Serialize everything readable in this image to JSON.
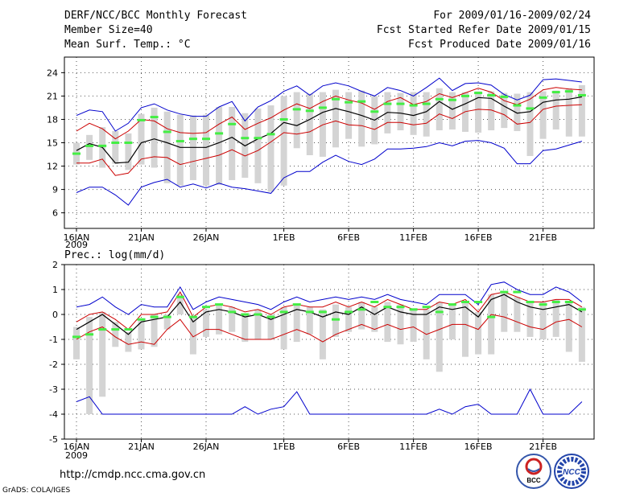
{
  "header": {
    "title": "DERF/NCC/BCC Monthly Forecast",
    "member_size": "Member Size=40",
    "variable": "Mean Surf. Temp.: °C",
    "forecast_period": "For 2009/01/16-2009/02/24",
    "started_date": "Fcst Started Refer Date 2009/01/15",
    "produced_date": "Fcst Produced Date 2009/01/16"
  },
  "footer": {
    "url": "http://cmdp.ncc.cma.gov.cn",
    "credit": "GrADS: COLA/IGES",
    "logo_left": "BCC",
    "logo_right": "NCC"
  },
  "colors": {
    "box": "#d4d4d4",
    "median": "#000000",
    "quartile": "#cc0000",
    "extreme": "#0000cc",
    "marker": "#44ee44"
  },
  "chart_data": [
    {
      "type": "box-plume",
      "title": "Mean Surf. Temp.: °C",
      "ylabel": "",
      "ylim": [
        4,
        26
      ],
      "yticks": [
        6,
        9,
        12,
        15,
        18,
        21,
        24
      ],
      "xlabels": [
        "16JAN",
        "21JAN",
        "26JAN",
        "1FEB",
        "6FEB",
        "11FEB",
        "16FEB",
        "21FEB"
      ],
      "xlabel_days": [
        1,
        6,
        11,
        17,
        22,
        27,
        32,
        37
      ],
      "x_year": "2009",
      "x": [
        1,
        2,
        3,
        4,
        5,
        6,
        7,
        8,
        9,
        10,
        11,
        12,
        13,
        14,
        15,
        16,
        17,
        18,
        19,
        20,
        21,
        22,
        23,
        24,
        25,
        26,
        27,
        28,
        29,
        30,
        31,
        32,
        33,
        34,
        35,
        36,
        37,
        38,
        39,
        40
      ],
      "series": [
        {
          "name": "max",
          "values": [
            18.5,
            19.2,
            19.0,
            16.5,
            17.5,
            19.5,
            20.0,
            19.2,
            18.7,
            18.4,
            18.4,
            19.6,
            20.3,
            17.8,
            19.6,
            20.4,
            21.6,
            22.3,
            21.1,
            22.3,
            22.7,
            22.3,
            21.6,
            21.0,
            22.1,
            21.7,
            21.0,
            22.1,
            23.3,
            21.7,
            22.6,
            22.7,
            22.4,
            21.2,
            20.5,
            21.1,
            23.1,
            23.2,
            23.0,
            22.8
          ]
        },
        {
          "name": "upper",
          "values": [
            16.5,
            17.5,
            16.8,
            15.5,
            16.5,
            18.0,
            17.8,
            16.8,
            16.3,
            16.2,
            16.3,
            17.4,
            18.3,
            16.7,
            17.5,
            18.2,
            19.2,
            20.0,
            19.4,
            20.3,
            21.0,
            20.5,
            20.1,
            19.3,
            20.3,
            20.8,
            19.9,
            20.3,
            21.3,
            20.8,
            21.4,
            22.0,
            21.5,
            20.4,
            19.9,
            20.6,
            21.8,
            22.1,
            21.9,
            21.8
          ]
        },
        {
          "name": "median",
          "values": [
            14.0,
            14.9,
            14.4,
            12.4,
            12.5,
            15.0,
            15.5,
            15.0,
            14.4,
            14.4,
            14.4,
            15.0,
            15.7,
            14.6,
            15.5,
            16.2,
            17.6,
            17.2,
            18.0,
            18.9,
            19.4,
            19.0,
            18.5,
            17.9,
            18.9,
            18.8,
            18.5,
            19.0,
            20.3,
            19.3,
            20.0,
            20.8,
            20.7,
            19.7,
            18.8,
            19.0,
            20.2,
            20.5,
            20.6,
            20.9
          ]
        },
        {
          "name": "lower",
          "values": [
            12.4,
            12.4,
            12.9,
            10.8,
            11.1,
            12.9,
            13.2,
            13.1,
            12.2,
            12.6,
            13.0,
            13.4,
            14.1,
            13.3,
            14.0,
            15.1,
            16.3,
            16.1,
            16.4,
            17.3,
            17.8,
            17.3,
            17.2,
            16.7,
            17.6,
            17.6,
            17.3,
            17.5,
            18.7,
            18.1,
            19.0,
            19.3,
            19.2,
            18.6,
            17.4,
            17.6,
            19.3,
            19.7,
            19.8,
            19.9
          ]
        },
        {
          "name": "min",
          "values": [
            8.6,
            9.3,
            9.3,
            8.3,
            7.0,
            9.3,
            9.9,
            10.3,
            9.3,
            9.7,
            9.2,
            9.8,
            9.3,
            9.1,
            8.8,
            8.5,
            10.5,
            11.3,
            11.3,
            12.5,
            13.4,
            12.6,
            12.2,
            12.9,
            14.2,
            14.2,
            14.3,
            14.5,
            15.0,
            14.6,
            15.2,
            15.3,
            15.0,
            14.3,
            12.3,
            12.3,
            14.0,
            14.2,
            14.7,
            15.2
          ]
        },
        {
          "name": "box_high",
          "values": [
            15.0,
            16.0,
            17.0,
            16.5,
            16.2,
            18.7,
            19.5,
            19.0,
            18.6,
            18.5,
            18.6,
            19.6,
            19.6,
            18.8,
            19.4,
            19.8,
            21.0,
            21.5,
            21.3,
            21.5,
            21.8,
            21.5,
            21.7,
            21.0,
            21.5,
            21.4,
            21.5,
            21.5,
            22.0,
            21.5,
            21.5,
            21.6,
            21.6,
            21.4,
            21.3,
            21.5,
            21.6,
            21.7,
            22.0,
            22.4
          ]
        },
        {
          "name": "box_low",
          "values": [
            12.2,
            12.8,
            11.8,
            12.3,
            11.5,
            12.2,
            11.8,
            9.8,
            9.5,
            10.2,
            9.5,
            9.6,
            10.2,
            10.5,
            9.8,
            8.7,
            9.5,
            14.3,
            13.4,
            13.2,
            14.4,
            15.5,
            14.5,
            14.8,
            16.2,
            16.6,
            16.0,
            15.8,
            16.6,
            16.7,
            16.4,
            16.3,
            16.6,
            16.9,
            16.5,
            13.3,
            15.5,
            16.7,
            15.8,
            15.8
          ]
        },
        {
          "name": "member_mean",
          "values": [
            13.6,
            14.6,
            14.6,
            15.0,
            15.0,
            17.9,
            18.3,
            16.4,
            15.2,
            15.5,
            15.5,
            16.2,
            17.4,
            15.6,
            15.6,
            16.1,
            18.0,
            19.3,
            19.1,
            19.5,
            20.6,
            20.2,
            20.3,
            19.0,
            20.0,
            20.0,
            19.8,
            20.0,
            20.6,
            20.5,
            21.0,
            21.4,
            21.1,
            20.9,
            19.8,
            19.4,
            20.8,
            21.5,
            21.6,
            21.1
          ]
        }
      ]
    },
    {
      "type": "box-plume",
      "title": "Prec.: log(mm/d)",
      "ylabel": "",
      "ylim": [
        -5,
        2
      ],
      "yticks": [
        -5,
        -4,
        -3,
        -2,
        -1,
        0,
        1,
        2
      ],
      "xlabels": [
        "16JAN",
        "21JAN",
        "26JAN",
        "1FEB",
        "6FEB",
        "11FEB",
        "16FEB",
        "21FEB"
      ],
      "xlabel_days": [
        1,
        6,
        11,
        17,
        22,
        27,
        32,
        37
      ],
      "x_year": "2009",
      "x": [
        1,
        2,
        3,
        4,
        5,
        6,
        7,
        8,
        9,
        10,
        11,
        12,
        13,
        14,
        15,
        16,
        17,
        18,
        19,
        20,
        21,
        22,
        23,
        24,
        25,
        26,
        27,
        28,
        29,
        30,
        31,
        32,
        33,
        34,
        35,
        36,
        37,
        38,
        39,
        40
      ],
      "series": [
        {
          "name": "max",
          "values": [
            0.3,
            0.4,
            0.7,
            0.3,
            0.0,
            0.4,
            0.3,
            0.3,
            1.1,
            0.2,
            0.5,
            0.7,
            0.6,
            0.5,
            0.4,
            0.2,
            0.5,
            0.7,
            0.5,
            0.6,
            0.7,
            0.6,
            0.7,
            0.6,
            0.8,
            0.6,
            0.5,
            0.4,
            0.8,
            0.8,
            0.8,
            0.4,
            1.2,
            1.3,
            1.0,
            0.8,
            0.8,
            1.1,
            0.9,
            0.5
          ]
        },
        {
          "name": "upper",
          "values": [
            -0.3,
            0.0,
            0.1,
            -0.2,
            -0.6,
            0.0,
            0.0,
            0.1,
            0.9,
            -0.1,
            0.3,
            0.4,
            0.3,
            0.1,
            0.2,
            0.0,
            0.3,
            0.4,
            0.3,
            0.3,
            0.5,
            0.3,
            0.5,
            0.3,
            0.6,
            0.4,
            0.2,
            0.2,
            0.5,
            0.4,
            0.6,
            0.1,
            0.8,
            0.9,
            0.7,
            0.5,
            0.5,
            0.6,
            0.6,
            0.3
          ]
        },
        {
          "name": "median",
          "values": [
            -0.6,
            -0.3,
            0.0,
            -0.4,
            -0.8,
            -0.3,
            -0.2,
            -0.1,
            0.5,
            -0.3,
            0.1,
            0.2,
            0.1,
            -0.1,
            0.0,
            -0.2,
            0.0,
            0.2,
            0.1,
            -0.1,
            0.1,
            0.0,
            0.3,
            0.0,
            0.3,
            0.1,
            0.0,
            0.0,
            0.3,
            0.2,
            0.3,
            -0.1,
            0.6,
            0.8,
            0.5,
            0.3,
            0.2,
            0.3,
            0.4,
            0.1
          ]
        },
        {
          "name": "lower",
          "values": [
            -1.0,
            -0.7,
            -0.5,
            -0.9,
            -1.2,
            -1.1,
            -1.2,
            -0.6,
            -0.2,
            -0.9,
            -0.6,
            -0.6,
            -0.8,
            -1.0,
            -1.0,
            -1.0,
            -0.8,
            -0.6,
            -0.8,
            -1.1,
            -0.8,
            -0.6,
            -0.4,
            -0.6,
            -0.4,
            -0.6,
            -0.5,
            -0.8,
            -0.6,
            -0.4,
            -0.4,
            -0.6,
            0.0,
            -0.1,
            -0.3,
            -0.5,
            -0.6,
            -0.3,
            -0.2,
            -0.5
          ]
        },
        {
          "name": "min",
          "values": [
            -3.5,
            -3.3,
            -4.0,
            -4.0,
            -4.0,
            -4.0,
            -4.0,
            -4.0,
            -4.0,
            -4.0,
            -4.0,
            -4.0,
            -4.0,
            -3.7,
            -4.0,
            -3.8,
            -3.7,
            -3.1,
            -4.0,
            -4.0,
            -4.0,
            -4.0,
            -4.0,
            -4.0,
            -4.0,
            -4.0,
            -4.0,
            -4.0,
            -3.8,
            -4.0,
            -3.7,
            -3.6,
            -4.0,
            -4.0,
            -4.0,
            -3.0,
            -4.0,
            -4.0,
            -4.0,
            -3.5
          ]
        },
        {
          "name": "box_high",
          "values": [
            -0.5,
            -0.1,
            0.1,
            -0.3,
            -0.7,
            -0.2,
            0.0,
            0.0,
            0.8,
            -0.1,
            0.2,
            0.4,
            0.3,
            0.0,
            0.2,
            0.0,
            0.3,
            0.4,
            0.3,
            0.2,
            0.4,
            0.3,
            0.5,
            0.3,
            0.5,
            0.4,
            0.2,
            0.2,
            0.5,
            0.4,
            0.5,
            0.1,
            0.8,
            0.9,
            0.7,
            0.5,
            0.5,
            0.6,
            0.5,
            0.3
          ]
        },
        {
          "name": "box_low",
          "values": [
            -1.8,
            -4.0,
            -3.3,
            -1.3,
            -1.5,
            -1.4,
            -1.3,
            -0.6,
            0.0,
            -1.6,
            -0.9,
            -0.8,
            -0.7,
            -1.1,
            -1.0,
            -1.0,
            -1.4,
            -1.1,
            -0.8,
            -1.8,
            -0.9,
            -0.7,
            -0.6,
            -0.7,
            -1.1,
            -1.2,
            -1.1,
            -1.8,
            -2.3,
            -1.0,
            -1.7,
            -1.6,
            -1.6,
            -0.7,
            -0.7,
            -0.9,
            -1.0,
            -0.9,
            -1.5,
            -1.9
          ]
        },
        {
          "name": "member_mean",
          "values": [
            -0.9,
            -0.8,
            -0.6,
            -0.6,
            -0.6,
            -0.2,
            -0.1,
            -0.1,
            0.7,
            -0.1,
            0.3,
            0.4,
            0.1,
            0.0,
            0.0,
            -0.1,
            0.1,
            0.4,
            0.1,
            0.1,
            -0.2,
            0.1,
            0.2,
            0.5,
            0.3,
            0.3,
            0.2,
            0.3,
            0.1,
            0.4,
            0.5,
            0.5,
            -0.1,
            0.9,
            0.9,
            0.5,
            0.4,
            0.5,
            0.5,
            0.2
          ]
        }
      ]
    }
  ]
}
